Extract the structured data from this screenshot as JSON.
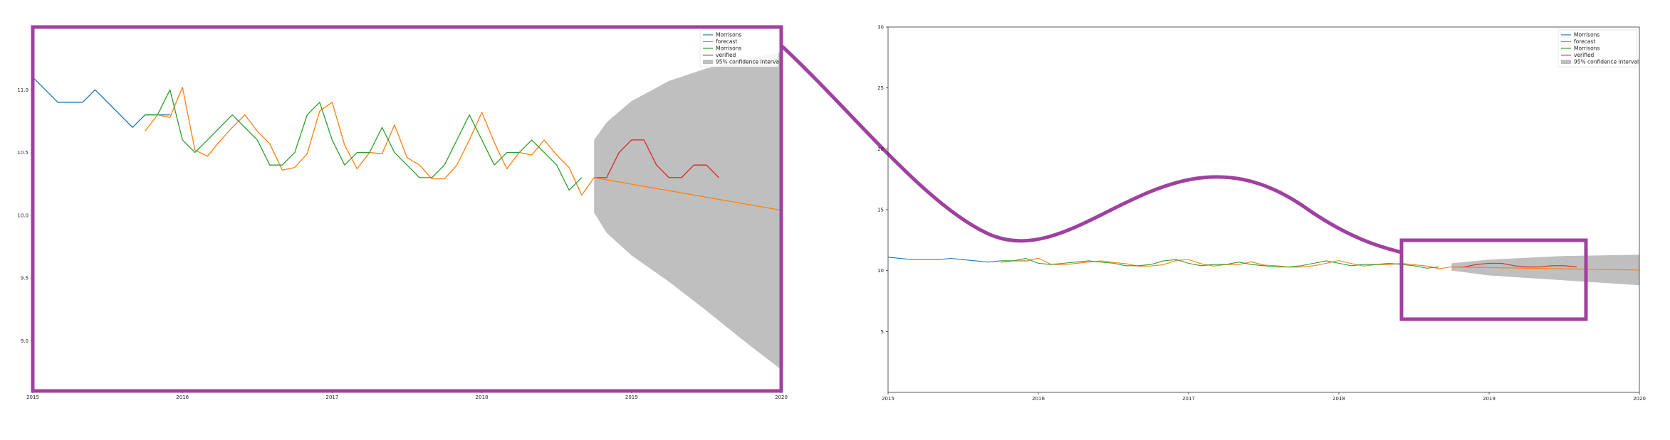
{
  "colors": {
    "Morrisons": "#1f77b4",
    "forecast": "#ff7f0e",
    "Morrisons_green": "#2ca02c",
    "verified": "#d62728",
    "ci": "#bfbfbf",
    "highlight": "#a040a0"
  },
  "chart_data": [
    {
      "type": "line",
      "panel": "zoomed",
      "x_range": [
        2015,
        2020
      ],
      "ylim": [
        8.6,
        11.5
      ],
      "xticks": [
        "2015",
        "2016",
        "2017",
        "2018",
        "2019",
        "2020"
      ],
      "yticks": [
        "9.0",
        "9.5",
        "10.0",
        "10.5",
        "11.0"
      ],
      "legend_position": "top-right",
      "grid": false,
      "legend": [
        "Morrisons",
        "forecast",
        "Morrisons",
        "verified",
        "95% confidence interval"
      ],
      "series": [
        {
          "name": "Morrisons",
          "color_key": "Morrisons",
          "x": [
            2015.0,
            2015.1667,
            2015.3333,
            2015.4167,
            2015.6667,
            2015.75,
            2015.8333,
            2015.9167
          ],
          "y": [
            11.1,
            10.9,
            10.9,
            11.0,
            10.7,
            10.8,
            10.8,
            10.8
          ]
        },
        {
          "name": "forecast",
          "color_key": "forecast",
          "x": [
            2015.75,
            2015.8333,
            2015.9167,
            2016.0,
            2016.0833,
            2016.1667,
            2016.25,
            2016.3333,
            2016.4167,
            2016.5,
            2016.5833,
            2016.6667,
            2016.75,
            2016.8333,
            2016.9167,
            2017.0,
            2017.0833,
            2017.1667,
            2017.25,
            2017.3333,
            2017.4167,
            2017.5,
            2017.5833,
            2017.6667,
            2017.75,
            2017.8333,
            2017.9167,
            2018.0,
            2018.0833,
            2018.1667,
            2018.25,
            2018.3333,
            2018.4167,
            2018.5,
            2018.5833,
            2018.6667,
            2018.75
          ],
          "y": [
            10.67,
            10.8,
            10.78,
            11.02,
            10.52,
            10.47,
            10.59,
            10.7,
            10.8,
            10.67,
            10.57,
            10.36,
            10.38,
            10.49,
            10.83,
            10.9,
            10.56,
            10.37,
            10.5,
            10.49,
            10.72,
            10.46,
            10.4,
            10.29,
            10.29,
            10.4,
            10.6,
            10.82,
            10.58,
            10.37,
            10.5,
            10.48,
            10.6,
            10.48,
            10.38,
            10.16,
            10.3
          ]
        },
        {
          "name": "Morrisons",
          "color_key": "Morrisons_green",
          "x": [
            2015.75,
            2015.8333,
            2015.9167,
            2016.0,
            2016.0833,
            2016.1667,
            2016.25,
            2016.3333,
            2016.4167,
            2016.5,
            2016.5833,
            2016.6667,
            2016.75,
            2016.8333,
            2016.9167,
            2017.0,
            2017.0833,
            2017.1667,
            2017.25,
            2017.3333,
            2017.4167,
            2017.5,
            2017.5833,
            2017.6667,
            2017.75,
            2017.8333,
            2017.9167,
            2018.0,
            2018.0833,
            2018.1667,
            2018.25,
            2018.3333,
            2018.4167,
            2018.5,
            2018.5833,
            2018.6667
          ],
          "y": [
            10.8,
            10.8,
            11.0,
            10.6,
            10.5,
            10.6,
            10.7,
            10.8,
            10.7,
            10.6,
            10.4,
            10.4,
            10.5,
            10.8,
            10.9,
            10.6,
            10.4,
            10.5,
            10.5,
            10.7,
            10.5,
            10.4,
            10.3,
            10.3,
            10.4,
            10.6,
            10.8,
            10.6,
            10.4,
            10.5,
            10.5,
            10.6,
            10.5,
            10.4,
            10.2,
            10.3
          ]
        },
        {
          "name": "verified",
          "color_key": "verified",
          "x": [
            2018.75,
            2018.8333,
            2018.9167,
            2019.0,
            2019.0833,
            2019.1667,
            2019.25,
            2019.3333,
            2019.4167,
            2019.5,
            2019.5833
          ],
          "y": [
            10.3,
            10.3,
            10.5,
            10.6,
            10.6,
            10.4,
            10.3,
            10.3,
            10.4,
            10.4,
            10.3
          ]
        },
        {
          "name": "forecast",
          "color_key": "forecast",
          "role": "projection",
          "x": [
            2018.75,
            2020.0
          ],
          "y": [
            10.3,
            10.04
          ]
        }
      ],
      "confidence_interval": {
        "x": [
          2018.75,
          2018.8333,
          2019.0,
          2019.25,
          2019.5,
          2019.75,
          2020.0
        ],
        "upper": [
          10.6,
          10.74,
          10.91,
          11.07,
          11.17,
          11.24,
          11.3
        ],
        "lower": [
          10.02,
          9.86,
          9.68,
          9.47,
          9.24,
          9.0,
          8.77
        ]
      }
    },
    {
      "type": "line",
      "panel": "full",
      "x_range": [
        2015,
        2020
      ],
      "ylim": [
        0,
        30
      ],
      "xticks": [
        "2015",
        "2016",
        "2017",
        "2018",
        "2019",
        "2020"
      ],
      "yticks": [
        "5",
        "10",
        "15",
        "20",
        "25",
        "30"
      ],
      "legend_position": "top-right",
      "grid": false,
      "legend": [
        "Morrisons",
        "forecast",
        "Morrisons",
        "verified",
        "95% confidence interval"
      ],
      "same_series_as_panel": 0,
      "confidence_interval": {
        "x": [
          2018.75,
          2019.0,
          2019.5,
          2020.0
        ],
        "upper": [
          10.6,
          10.9,
          11.2,
          11.3
        ],
        "lower": [
          10.0,
          9.6,
          9.2,
          8.8
        ]
      }
    }
  ]
}
